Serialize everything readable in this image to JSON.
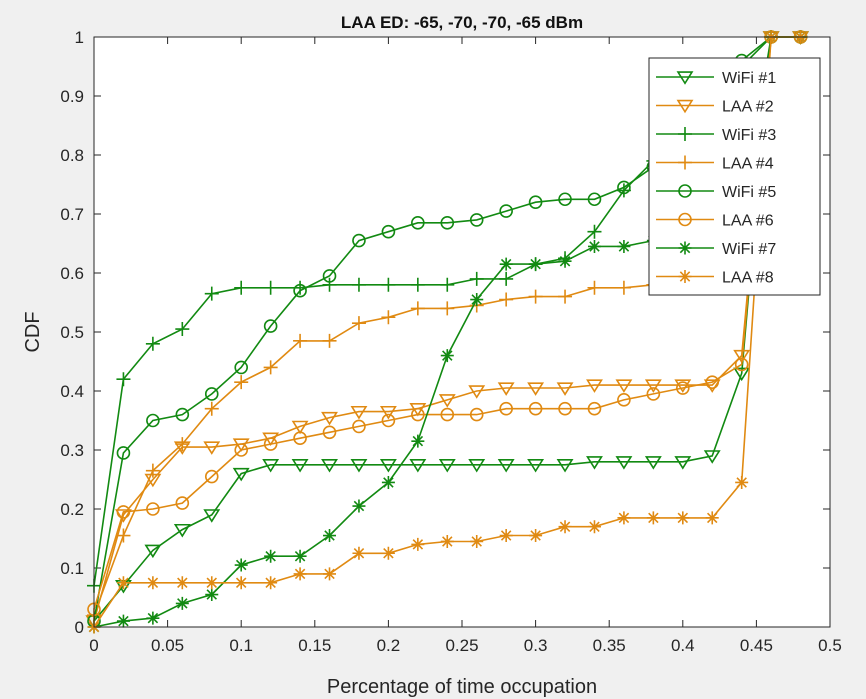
{
  "chart_data": {
    "type": "line",
    "title": "LAA ED: -65, -70, -70, -65 dBm",
    "xlabel": "Percentage of time occupation",
    "ylabel": "CDF",
    "xlim": [
      0,
      0.5
    ],
    "ylim": [
      0,
      1
    ],
    "xticks": [
      "0",
      "0.05",
      "0.1",
      "0.15",
      "0.2",
      "0.25",
      "0.3",
      "0.35",
      "0.4",
      "0.45",
      "0.5"
    ],
    "yticks": [
      "0",
      "0.1",
      "0.2",
      "0.3",
      "0.4",
      "0.5",
      "0.6",
      "0.7",
      "0.8",
      "0.9",
      "1"
    ],
    "grid": false,
    "legend_position": "top-right",
    "colors": {
      "wifi": "#128a12",
      "laa": "#e08a12"
    },
    "x": [
      0,
      0.02,
      0.04,
      0.06,
      0.08,
      0.1,
      0.12,
      0.14,
      0.16,
      0.18,
      0.2,
      0.22,
      0.24,
      0.26,
      0.28,
      0.3,
      0.32,
      0.34,
      0.36,
      0.38,
      0.4,
      0.42,
      0.44,
      0.46,
      0.48
    ],
    "series": [
      {
        "name": "WiFi #1",
        "color": "wifi",
        "marker": "triangle-down",
        "values": [
          0.01,
          0.07,
          0.13,
          0.165,
          0.19,
          0.26,
          0.275,
          0.275,
          0.275,
          0.275,
          0.275,
          0.275,
          0.275,
          0.275,
          0.275,
          0.275,
          0.275,
          0.28,
          0.28,
          0.28,
          0.28,
          0.29,
          0.43,
          1,
          1
        ]
      },
      {
        "name": "LAA #2",
        "color": "laa",
        "marker": "triangle-down",
        "values": [
          0.01,
          0.19,
          0.25,
          0.305,
          0.305,
          0.31,
          0.32,
          0.34,
          0.355,
          0.365,
          0.365,
          0.37,
          0.385,
          0.4,
          0.405,
          0.405,
          0.405,
          0.41,
          0.41,
          0.41,
          0.41,
          0.41,
          0.46,
          1,
          1
        ]
      },
      {
        "name": "WiFi #3",
        "color": "wifi",
        "marker": "plus",
        "values": [
          0.07,
          0.42,
          0.48,
          0.505,
          0.565,
          0.575,
          0.575,
          0.575,
          0.58,
          0.58,
          0.58,
          0.58,
          0.58,
          0.59,
          0.59,
          0.615,
          0.625,
          0.67,
          0.74,
          0.79,
          0.88,
          0.92,
          0.95,
          1,
          1
        ]
      },
      {
        "name": "LAA #4",
        "color": "laa",
        "marker": "plus",
        "values": [
          0.02,
          0.155,
          0.265,
          0.31,
          0.37,
          0.415,
          0.44,
          0.485,
          0.485,
          0.515,
          0.525,
          0.54,
          0.54,
          0.545,
          0.555,
          0.56,
          0.56,
          0.575,
          0.575,
          0.58,
          0.585,
          0.59,
          0.6,
          1,
          1
        ]
      },
      {
        "name": "WiFi #5",
        "color": "wifi",
        "marker": "circle",
        "values": [
          0.01,
          0.295,
          0.35,
          0.36,
          0.395,
          0.44,
          0.51,
          0.57,
          0.595,
          0.655,
          0.67,
          0.685,
          0.685,
          0.69,
          0.705,
          0.72,
          0.725,
          0.725,
          0.745,
          0.78,
          0.82,
          0.88,
          0.96,
          1,
          1
        ]
      },
      {
        "name": "LAA #6",
        "color": "laa",
        "marker": "circle",
        "values": [
          0.03,
          0.195,
          0.2,
          0.21,
          0.255,
          0.3,
          0.31,
          0.32,
          0.33,
          0.34,
          0.35,
          0.36,
          0.36,
          0.36,
          0.37,
          0.37,
          0.37,
          0.37,
          0.385,
          0.395,
          0.405,
          0.415,
          0.445,
          1,
          1
        ]
      },
      {
        "name": "WiFi #7",
        "color": "wifi",
        "marker": "asterisk",
        "values": [
          0.0,
          0.01,
          0.015,
          0.04,
          0.055,
          0.105,
          0.12,
          0.12,
          0.155,
          0.205,
          0.245,
          0.315,
          0.46,
          0.555,
          0.615,
          0.615,
          0.62,
          0.645,
          0.645,
          0.655,
          0.665,
          0.68,
          0.7,
          1,
          1
        ]
      },
      {
        "name": "LAA #8",
        "color": "laa",
        "marker": "asterisk",
        "values": [
          0.0,
          0.075,
          0.075,
          0.075,
          0.075,
          0.075,
          0.075,
          0.09,
          0.09,
          0.125,
          0.125,
          0.14,
          0.145,
          0.145,
          0.155,
          0.155,
          0.17,
          0.17,
          0.185,
          0.185,
          0.185,
          0.185,
          0.245,
          1,
          1
        ]
      }
    ]
  }
}
